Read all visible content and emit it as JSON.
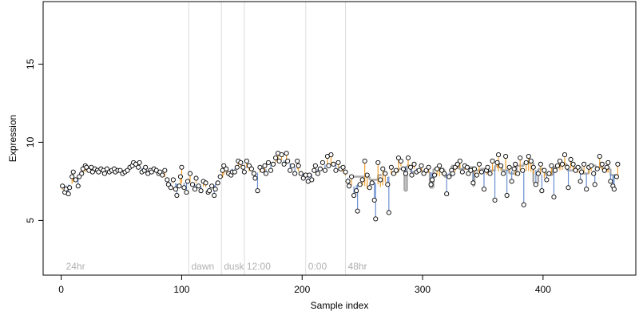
{
  "chart_data": {
    "type": "scatter",
    "title": "",
    "xlabel": "Sample index",
    "ylabel": "Expression",
    "xlim": [
      -15,
      477
    ],
    "ylim": [
      1.5,
      19.0
    ],
    "xticks": [
      0,
      100,
      200,
      300,
      400
    ],
    "yticks": [
      5,
      10,
      15
    ],
    "grid": false,
    "colors": {
      "above": "#f0a030",
      "below": "#6a8fd0",
      "step": "#a8a8a8",
      "vline": "#dcdcdc",
      "point_fill": "#ffffff",
      "point_stroke": "#000000"
    },
    "annotations": [
      {
        "x": 2,
        "label": "24hr",
        "line": false
      },
      {
        "x": 106,
        "label": "dawn",
        "line": true
      },
      {
        "x": 133,
        "label": "dusk",
        "line": true
      },
      {
        "x": 152,
        "label": "12:00",
        "line": true
      },
      {
        "x": 203,
        "label": "0:00",
        "line": true
      },
      {
        "x": 236,
        "label": "48hr",
        "line": true
      }
    ],
    "points": [
      [
        1,
        7.2
      ],
      [
        3,
        6.8
      ],
      [
        4,
        7.0
      ],
      [
        6,
        6.7
      ],
      [
        7,
        7.1
      ],
      [
        9,
        7.8
      ],
      [
        10,
        8.1
      ],
      [
        12,
        7.6
      ],
      [
        14,
        7.2
      ],
      [
        15,
        7.8
      ],
      [
        17,
        8.0
      ],
      [
        18,
        8.3
      ],
      [
        20,
        8.5
      ],
      [
        21,
        8.4
      ],
      [
        23,
        8.2
      ],
      [
        25,
        8.4
      ],
      [
        26,
        8.1
      ],
      [
        28,
        8.3
      ],
      [
        30,
        8.2
      ],
      [
        31,
        8.1
      ],
      [
        33,
        8.3
      ],
      [
        35,
        8.2
      ],
      [
        36,
        8.0
      ],
      [
        38,
        8.3
      ],
      [
        40,
        8.1
      ],
      [
        42,
        8.2
      ],
      [
        44,
        8.3
      ],
      [
        45,
        8.1
      ],
      [
        47,
        8.2
      ],
      [
        49,
        8.2
      ],
      [
        51,
        8.0
      ],
      [
        53,
        8.1
      ],
      [
        55,
        8.2
      ],
      [
        57,
        8.4
      ],
      [
        59,
        8.5
      ],
      [
        60,
        8.7
      ],
      [
        62,
        8.6
      ],
      [
        64,
        8.4
      ],
      [
        65,
        8.7
      ],
      [
        67,
        8.1
      ],
      [
        69,
        8.2
      ],
      [
        70,
        8.4
      ],
      [
        72,
        8.0
      ],
      [
        74,
        8.2
      ],
      [
        75,
        8.1
      ],
      [
        77,
        8.3
      ],
      [
        79,
        8.2
      ],
      [
        81,
        8.0
      ],
      [
        82,
        8.1
      ],
      [
        84,
        7.9
      ],
      [
        86,
        8.2
      ],
      [
        88,
        7.6
      ],
      [
        89,
        7.3
      ],
      [
        91,
        7.1
      ],
      [
        93,
        7.6
      ],
      [
        95,
        7.0
      ],
      [
        96,
        6.6
      ],
      [
        98,
        7.2
      ],
      [
        99,
        7.8
      ],
      [
        100,
        8.4
      ],
      [
        102,
        7.1
      ],
      [
        104,
        6.8
      ],
      [
        105,
        7.5
      ],
      [
        107,
        8.0
      ],
      [
        109,
        7.3
      ],
      [
        111,
        7.0
      ],
      [
        112,
        7.7
      ],
      [
        114,
        7.2
      ],
      [
        116,
        6.9
      ],
      [
        118,
        7.5
      ],
      [
        120,
        7.4
      ],
      [
        122,
        6.8
      ],
      [
        123,
        6.9
      ],
      [
        125,
        7.2
      ],
      [
        127,
        6.6
      ],
      [
        128,
        7.0
      ],
      [
        130,
        7.4
      ],
      [
        132,
        7.8
      ],
      [
        134,
        8.2
      ],
      [
        135,
        8.5
      ],
      [
        137,
        8.3
      ],
      [
        139,
        8.0
      ],
      [
        141,
        7.9
      ],
      [
        142,
        8.1
      ],
      [
        144,
        8.1
      ],
      [
        146,
        8.4
      ],
      [
        147,
        8.8
      ],
      [
        149,
        8.7
      ],
      [
        151,
        8.4
      ],
      [
        152,
        8.1
      ],
      [
        154,
        8.8
      ],
      [
        156,
        8.5
      ],
      [
        158,
        8.3
      ],
      [
        160,
        8.0
      ],
      [
        161,
        7.7
      ],
      [
        163,
        6.9
      ],
      [
        165,
        8.4
      ],
      [
        167,
        8.2
      ],
      [
        169,
        8.5
      ],
      [
        170,
        8.0
      ],
      [
        172,
        8.7
      ],
      [
        174,
        8.2
      ],
      [
        176,
        8.6
      ],
      [
        178,
        9.0
      ],
      [
        180,
        9.3
      ],
      [
        181,
        8.8
      ],
      [
        183,
        9.2
      ],
      [
        185,
        8.6
      ],
      [
        187,
        9.3
      ],
      [
        188,
        8.8
      ],
      [
        190,
        8.2
      ],
      [
        192,
        8.5
      ],
      [
        194,
        8.0
      ],
      [
        196,
        8.8
      ],
      [
        197,
        8.5
      ],
      [
        199,
        8.0
      ],
      [
        201,
        7.7
      ],
      [
        203,
        7.9
      ],
      [
        205,
        7.5
      ],
      [
        206,
        7.9
      ],
      [
        208,
        7.6
      ],
      [
        210,
        8.2
      ],
      [
        211,
        8.5
      ],
      [
        213,
        8.0
      ],
      [
        215,
        8.3
      ],
      [
        217,
        8.7
      ],
      [
        219,
        8.2
      ],
      [
        221,
        9.1
      ],
      [
        222,
        8.5
      ],
      [
        224,
        9.2
      ],
      [
        226,
        8.6
      ],
      [
        228,
        8.2
      ],
      [
        230,
        8.7
      ],
      [
        232,
        8.3
      ],
      [
        234,
        8.4
      ],
      [
        236,
        8.1
      ],
      [
        238,
        7.5
      ],
      [
        239,
        7.2
      ],
      [
        241,
        7.8
      ],
      [
        243,
        6.6
      ],
      [
        245,
        6.9
      ],
      [
        246,
        5.6
      ],
      [
        248,
        7.3
      ],
      [
        250,
        7.6
      ],
      [
        252,
        8.8
      ],
      [
        254,
        7.9
      ],
      [
        256,
        7.1
      ],
      [
        258,
        7.4
      ],
      [
        260,
        6.3
      ],
      [
        261,
        5.1
      ],
      [
        263,
        8.7
      ],
      [
        265,
        7.6
      ],
      [
        267,
        8.3
      ],
      [
        269,
        8.0
      ],
      [
        271,
        7.3
      ],
      [
        272,
        5.5
      ],
      [
        274,
        8.4
      ],
      [
        276,
        8.0
      ],
      [
        278,
        8.2
      ],
      [
        280,
        9.0
      ],
      [
        282,
        8.8
      ],
      [
        284,
        8.3
      ],
      [
        286,
        8.0
      ],
      [
        288,
        9.0
      ],
      [
        290,
        8.4
      ],
      [
        291,
        7.9
      ],
      [
        293,
        8.6
      ],
      [
        295,
        8.1
      ],
      [
        297,
        8.2
      ],
      [
        299,
        8.5
      ],
      [
        301,
        8.0
      ],
      [
        303,
        8.2
      ],
      [
        305,
        8.4
      ],
      [
        307,
        7.3
      ],
      [
        308,
        7.6
      ],
      [
        310,
        7.9
      ],
      [
        312,
        8.3
      ],
      [
        314,
        8.5
      ],
      [
        316,
        8.2
      ],
      [
        318,
        8.0
      ],
      [
        320,
        6.7
      ],
      [
        322,
        7.8
      ],
      [
        324,
        8.2
      ],
      [
        325,
        8.0
      ],
      [
        327,
        8.4
      ],
      [
        329,
        8.6
      ],
      [
        331,
        8.8
      ],
      [
        333,
        8.1
      ],
      [
        335,
        8.5
      ],
      [
        337,
        8.4
      ],
      [
        338,
        8.0
      ],
      [
        340,
        8.2
      ],
      [
        342,
        7.4
      ],
      [
        343,
        8.3
      ],
      [
        345,
        7.9
      ],
      [
        347,
        8.6
      ],
      [
        349,
        8.1
      ],
      [
        351,
        7.0
      ],
      [
        353,
        8.2
      ],
      [
        354,
        8.4
      ],
      [
        356,
        8.0
      ],
      [
        358,
        8.8
      ],
      [
        360,
        6.3
      ],
      [
        362,
        8.7
      ],
      [
        363,
        9.2
      ],
      [
        365,
        8.5
      ],
      [
        367,
        8.0
      ],
      [
        369,
        9.1
      ],
      [
        370,
        6.6
      ],
      [
        372,
        8.4
      ],
      [
        374,
        7.5
      ],
      [
        376,
        8.3
      ],
      [
        377,
        8.6
      ],
      [
        379,
        8.0
      ],
      [
        381,
        9.0
      ],
      [
        383,
        8.2
      ],
      [
        384,
        6.0
      ],
      [
        386,
        8.7
      ],
      [
        388,
        9.1
      ],
      [
        390,
        8.8
      ],
      [
        392,
        8.4
      ],
      [
        394,
        7.3
      ],
      [
        396,
        8.0
      ],
      [
        398,
        8.6
      ],
      [
        399,
        6.9
      ],
      [
        401,
        8.2
      ],
      [
        403,
        7.6
      ],
      [
        405,
        8.0
      ],
      [
        407,
        8.5
      ],
      [
        409,
        6.5
      ],
      [
        410,
        8.2
      ],
      [
        412,
        8.5
      ],
      [
        414,
        8.8
      ],
      [
        416,
        8.6
      ],
      [
        418,
        9.2
      ],
      [
        420,
        8.4
      ],
      [
        421,
        7.1
      ],
      [
        423,
        8.9
      ],
      [
        425,
        8.6
      ],
      [
        427,
        8.2
      ],
      [
        429,
        8.4
      ],
      [
        431,
        7.5
      ],
      [
        432,
        8.1
      ],
      [
        434,
        8.6
      ],
      [
        436,
        7.0
      ],
      [
        438,
        8.4
      ],
      [
        440,
        8.5
      ],
      [
        442,
        8.0
      ],
      [
        443,
        7.3
      ],
      [
        445,
        8.3
      ],
      [
        447,
        9.1
      ],
      [
        449,
        8.6
      ],
      [
        451,
        8.2
      ],
      [
        453,
        8.4
      ],
      [
        454,
        8.7
      ],
      [
        456,
        7.5
      ],
      [
        458,
        7.2
      ],
      [
        459,
        7.0
      ],
      [
        461,
        7.8
      ],
      [
        462,
        8.6
      ]
    ],
    "segments": [
      [
        241,
        249,
        7.8
      ],
      [
        249,
        256,
        7.8
      ],
      [
        256,
        263,
        7.6
      ],
      [
        263,
        266,
        7.9
      ],
      [
        276,
        280,
        8.1
      ],
      [
        280,
        285,
        8.3
      ],
      [
        285,
        287,
        6.9
      ],
      [
        287,
        290,
        8.5
      ],
      [
        290,
        296,
        8.1
      ],
      [
        296,
        300,
        8.2
      ],
      [
        300,
        306,
        8.1
      ],
      [
        306,
        309,
        7.1
      ],
      [
        309,
        318,
        8.3
      ],
      [
        318,
        324,
        7.8
      ],
      [
        324,
        330,
        8.5
      ],
      [
        330,
        336,
        8.3
      ],
      [
        336,
        342,
        8.4
      ],
      [
        342,
        343,
        7.2
      ],
      [
        343,
        348,
        8.2
      ],
      [
        348,
        352,
        8.3
      ],
      [
        352,
        360,
        8.2
      ],
      [
        360,
        366,
        8.5
      ],
      [
        366,
        372,
        8.2
      ],
      [
        372,
        378,
        8.0
      ],
      [
        378,
        384,
        8.5
      ],
      [
        384,
        392,
        8.7
      ],
      [
        392,
        396,
        7.4
      ],
      [
        396,
        402,
        8.3
      ],
      [
        402,
        408,
        7.9
      ],
      [
        408,
        414,
        8.4
      ],
      [
        414,
        420,
        8.6
      ],
      [
        420,
        426,
        8.2
      ],
      [
        426,
        432,
        8.4
      ],
      [
        432,
        438,
        8.0
      ],
      [
        438,
        444,
        8.5
      ],
      [
        444,
        450,
        8.4
      ],
      [
        450,
        456,
        8.3
      ],
      [
        456,
        462,
        7.9
      ]
    ]
  }
}
